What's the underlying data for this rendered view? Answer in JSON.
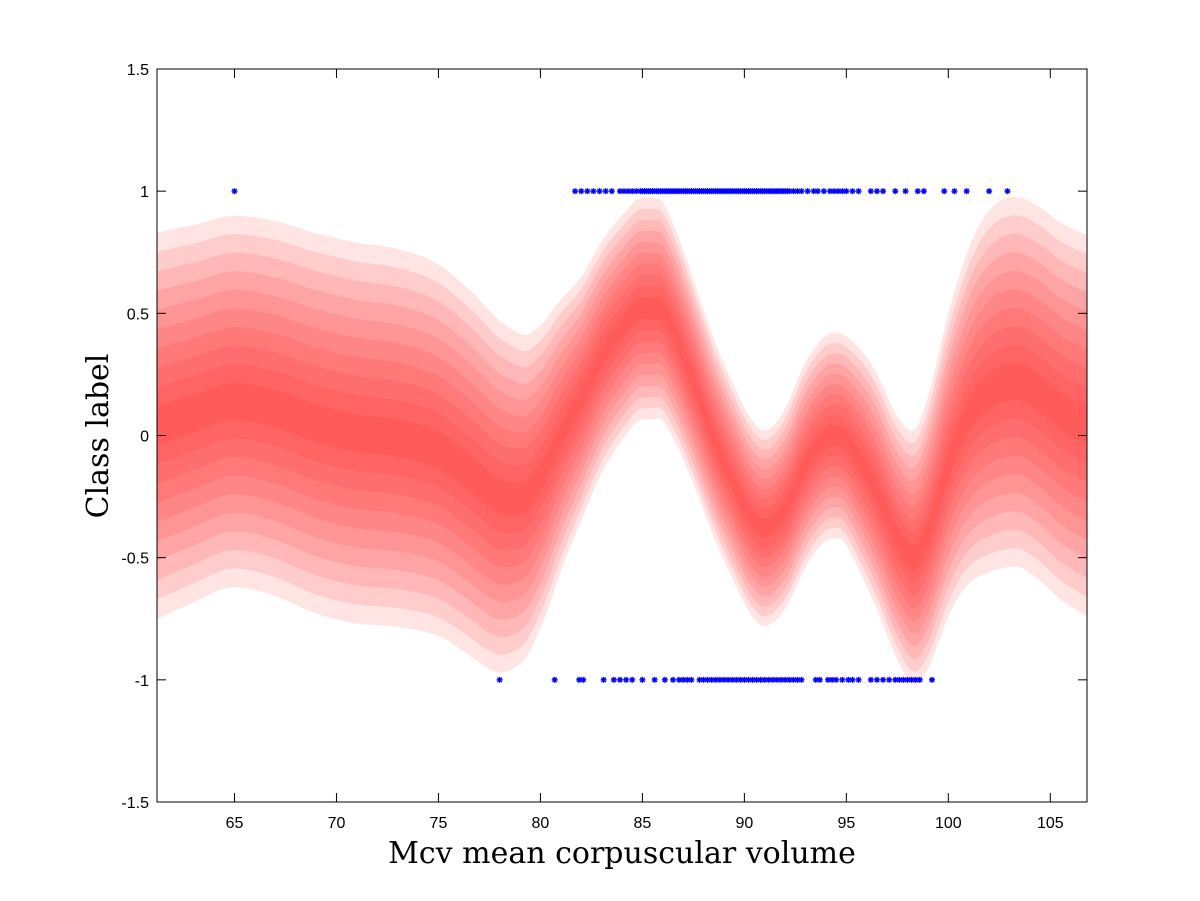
{
  "chart_data": {
    "type": "area",
    "xlabel": "Mcv mean corpuscular volume",
    "ylabel": "Class label",
    "xlim": [
      61.2,
      106.8
    ],
    "ylim": [
      -1.5,
      1.5
    ],
    "xticks": [
      65,
      70,
      75,
      80,
      85,
      90,
      95,
      100,
      105
    ],
    "yticks": [
      -1.5,
      -1,
      -0.5,
      0,
      0.5,
      1,
      1.5
    ],
    "grid": false,
    "band_color": "#ff2020",
    "marker_color": "#0000ff",
    "band_levels": 10,
    "mean_curve": {
      "x": [
        61.2,
        63,
        65,
        67,
        69,
        71,
        73,
        75,
        76.5,
        78,
        79,
        80,
        81,
        82,
        83,
        84,
        85,
        85.8,
        86.5,
        87.5,
        88.5,
        89.5,
        90.3,
        91,
        92,
        93,
        94,
        94.6,
        95.5,
        96.5,
        97.5,
        98.3,
        99,
        100,
        101,
        102,
        103.3,
        104.5,
        105.5,
        106.8
      ],
      "y": [
        0.04,
        0.09,
        0.14,
        0.11,
        0.05,
        0.01,
        -0.01,
        -0.06,
        -0.15,
        -0.25,
        -0.26,
        -0.17,
        0.0,
        0.15,
        0.32,
        0.44,
        0.52,
        0.52,
        0.43,
        0.22,
        -0.01,
        -0.2,
        -0.33,
        -0.38,
        -0.3,
        -0.12,
        -0.01,
        0.0,
        -0.08,
        -0.23,
        -0.42,
        -0.5,
        -0.4,
        -0.12,
        0.08,
        0.18,
        0.22,
        0.17,
        0.1,
        0.04
      ]
    },
    "band_half_width": {
      "x": [
        61.2,
        65,
        70,
        75,
        78,
        80,
        82,
        84,
        85.8,
        88,
        90,
        91,
        93,
        94.6,
        96,
        98.3,
        100,
        102,
        104,
        106.8
      ],
      "y": [
        0.79,
        0.76,
        0.78,
        0.76,
        0.72,
        0.62,
        0.5,
        0.46,
        0.45,
        0.41,
        0.4,
        0.4,
        0.42,
        0.42,
        0.47,
        0.52,
        0.62,
        0.74,
        0.76,
        0.78
      ]
    },
    "series": [
      {
        "class": 1,
        "x": [
          65.0,
          81.7,
          82.0,
          82.3,
          82.6,
          82.9,
          83.2,
          83.5,
          83.9,
          84.1,
          84.3,
          84.5,
          84.7,
          84.9,
          85.0,
          85.1,
          85.2,
          85.3,
          85.4,
          85.5,
          85.6,
          85.7,
          85.8,
          85.9,
          86.0,
          86.1,
          86.2,
          86.3,
          86.4,
          86.5,
          86.6,
          86.7,
          86.8,
          86.9,
          87.0,
          87.1,
          87.2,
          87.3,
          87.4,
          87.5,
          87.6,
          87.7,
          87.8,
          87.9,
          88.0,
          88.1,
          88.2,
          88.3,
          88.4,
          88.5,
          88.6,
          88.7,
          88.8,
          88.9,
          89.0,
          89.1,
          89.2,
          89.3,
          89.4,
          89.5,
          89.6,
          89.7,
          89.8,
          89.9,
          90.0,
          90.1,
          90.2,
          90.3,
          90.4,
          90.5,
          90.6,
          90.7,
          90.8,
          90.9,
          91.0,
          91.1,
          91.2,
          91.3,
          91.4,
          91.5,
          91.6,
          91.7,
          91.8,
          91.9,
          92.0,
          92.1,
          92.2,
          92.4,
          92.6,
          92.8,
          93.1,
          93.4,
          93.6,
          93.9,
          94.2,
          94.4,
          94.6,
          94.8,
          95.0,
          95.3,
          95.6,
          96.2,
          96.5,
          96.8,
          97.4,
          97.9,
          98.5,
          98.8,
          99.8,
          100.3,
          100.9,
          102.0,
          102.9
        ],
        "y": 1
      },
      {
        "class": -1,
        "x": [
          78.0,
          80.7,
          81.9,
          82.1,
          83.1,
          83.6,
          83.9,
          84.2,
          84.5,
          85.0,
          85.6,
          86.1,
          86.5,
          86.8,
          87.0,
          87.2,
          87.4,
          87.8,
          88.0,
          88.2,
          88.4,
          88.6,
          88.8,
          89.0,
          89.2,
          89.4,
          89.6,
          89.8,
          90.0,
          90.2,
          90.4,
          90.6,
          90.8,
          91.0,
          91.2,
          91.4,
          91.6,
          91.8,
          92.0,
          92.2,
          92.4,
          92.6,
          92.8,
          93.5,
          93.7,
          94.1,
          94.3,
          94.5,
          94.8,
          95.1,
          95.3,
          95.6,
          96.2,
          96.5,
          96.8,
          97.1,
          97.4,
          97.6,
          97.8,
          98.0,
          98.2,
          98.4,
          98.6,
          99.2
        ],
        "y": -1
      }
    ]
  }
}
